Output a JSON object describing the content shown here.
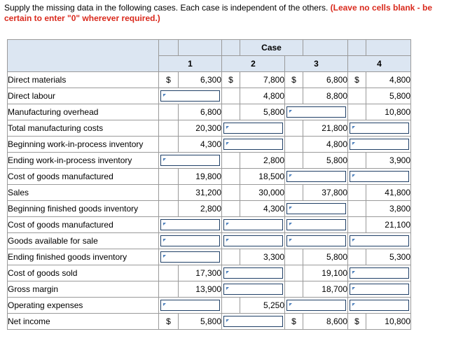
{
  "instructions": {
    "text": "Supply the missing data in the following cases. Each case is independent of the others.",
    "emphasis": "(Leave no cells blank - be certain to enter \"0\" wherever required.)"
  },
  "table": {
    "case_header": "Case",
    "columns": [
      "1",
      "2",
      "3",
      "4"
    ],
    "currency_symbol": "$",
    "rows": [
      {
        "label": "Direct materials",
        "cells": [
          "6,300",
          "7,800",
          "6,800",
          "4,800"
        ],
        "dollar": [
          true,
          true,
          true,
          true
        ]
      },
      {
        "label": "Direct labour",
        "cells": [
          "",
          "4,800",
          "8,800",
          "5,800"
        ],
        "dollar": [
          false,
          false,
          false,
          false
        ]
      },
      {
        "label": "Manufacturing overhead",
        "cells": [
          "6,800",
          "5,800",
          "",
          "10,800"
        ],
        "dollar": [
          false,
          false,
          false,
          false
        ]
      },
      {
        "label": "Total manufacturing costs",
        "cells": [
          "20,300",
          "",
          "21,800",
          ""
        ],
        "dollar": [
          false,
          false,
          false,
          false
        ]
      },
      {
        "label": "Beginning work-in-process inventory",
        "cells": [
          "4,300",
          "",
          "4,800",
          ""
        ],
        "dollar": [
          false,
          false,
          false,
          false
        ]
      },
      {
        "label": "Ending work-in-process inventory",
        "cells": [
          "",
          "2,800",
          "5,800",
          "3,900"
        ],
        "dollar": [
          false,
          false,
          false,
          false
        ]
      },
      {
        "label": "Cost of goods manufactured",
        "cells": [
          "19,800",
          "18,500",
          "",
          ""
        ],
        "dollar": [
          false,
          false,
          false,
          false
        ]
      },
      {
        "label": "Sales",
        "cells": [
          "31,200",
          "30,000",
          "37,800",
          "41,800"
        ],
        "dollar": [
          false,
          false,
          false,
          false
        ]
      },
      {
        "label": "Beginning finished goods inventory",
        "cells": [
          "2,800",
          "4,300",
          "",
          "3,800"
        ],
        "dollar": [
          false,
          false,
          false,
          false
        ]
      },
      {
        "label": "Cost of goods manufactured",
        "cells": [
          "",
          "",
          "",
          "21,100"
        ],
        "dollar": [
          false,
          false,
          false,
          false
        ]
      },
      {
        "label": "Goods available for sale",
        "cells": [
          "",
          "",
          "",
          ""
        ],
        "dollar": [
          false,
          false,
          false,
          false
        ]
      },
      {
        "label": "Ending finished goods inventory",
        "cells": [
          "",
          "3,300",
          "5,800",
          "5,300"
        ],
        "dollar": [
          false,
          false,
          false,
          false
        ]
      },
      {
        "label": "Cost of goods sold",
        "cells": [
          "17,300",
          "",
          "19,100",
          ""
        ],
        "dollar": [
          false,
          false,
          false,
          false
        ]
      },
      {
        "label": "Gross margin",
        "cells": [
          "13,900",
          "",
          "18,700",
          ""
        ],
        "dollar": [
          false,
          false,
          false,
          false
        ]
      },
      {
        "label": "Operating expenses",
        "cells": [
          "",
          "5,250",
          "",
          ""
        ],
        "dollar": [
          false,
          false,
          false,
          false
        ]
      },
      {
        "label": "Net income",
        "cells": [
          "5,800",
          "",
          "8,600",
          "10,800"
        ],
        "dollar": [
          true,
          false,
          true,
          true
        ]
      }
    ]
  }
}
